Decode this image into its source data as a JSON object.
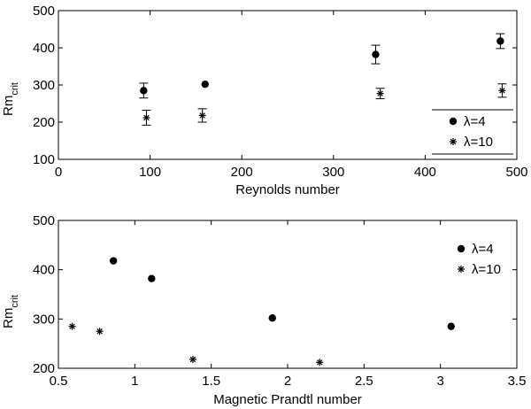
{
  "chart_data": [
    {
      "type": "scatter",
      "xlabel": "Reynolds number",
      "ylabel_main": "Rm",
      "ylabel_sub": "crit",
      "xlim": [
        0,
        500
      ],
      "ylim": [
        100,
        500
      ],
      "xticks": [
        "0",
        "100",
        "200",
        "300",
        "400",
        "500"
      ],
      "yticks": [
        "100",
        "200",
        "300",
        "400",
        "500"
      ],
      "legend_placement": "bottom-right",
      "series": [
        {
          "name": "λ=4",
          "marker": "dot",
          "points": [
            {
              "x": 93,
              "y": 285,
              "err": 20
            },
            {
              "x": 160,
              "y": 302,
              "err": 0
            },
            {
              "x": 346,
              "y": 382,
              "err": 25
            },
            {
              "x": 482,
              "y": 418,
              "err": 20
            }
          ]
        },
        {
          "name": "λ=10",
          "marker": "star",
          "points": [
            {
              "x": 96,
              "y": 212,
              "err": 20
            },
            {
              "x": 157,
              "y": 218,
              "err": 18
            },
            {
              "x": 351,
              "y": 277,
              "err": 14
            },
            {
              "x": 484,
              "y": 285,
              "err": 18
            }
          ]
        }
      ]
    },
    {
      "type": "scatter",
      "xlabel": "Magnetic Prandtl number",
      "ylabel_main": "Rm",
      "ylabel_sub": "crit",
      "xlim": [
        0.5,
        3.5
      ],
      "ylim": [
        200,
        500
      ],
      "xticks": [
        "0.5",
        "1",
        "1.5",
        "2",
        "2.5",
        "3",
        "3.5"
      ],
      "yticks": [
        "200",
        "300",
        "400",
        "500"
      ],
      "legend_placement": "top-right",
      "series": [
        {
          "name": "λ=4",
          "marker": "dot",
          "points": [
            {
              "x": 0.86,
              "y": 418
            },
            {
              "x": 1.11,
              "y": 382
            },
            {
              "x": 1.9,
              "y": 302
            },
            {
              "x": 3.07,
              "y": 285
            }
          ]
        },
        {
          "name": "λ=10",
          "marker": "star",
          "points": [
            {
              "x": 0.59,
              "y": 285
            },
            {
              "x": 0.77,
              "y": 275
            },
            {
              "x": 1.38,
              "y": 218
            },
            {
              "x": 2.21,
              "y": 212
            }
          ]
        }
      ]
    }
  ]
}
